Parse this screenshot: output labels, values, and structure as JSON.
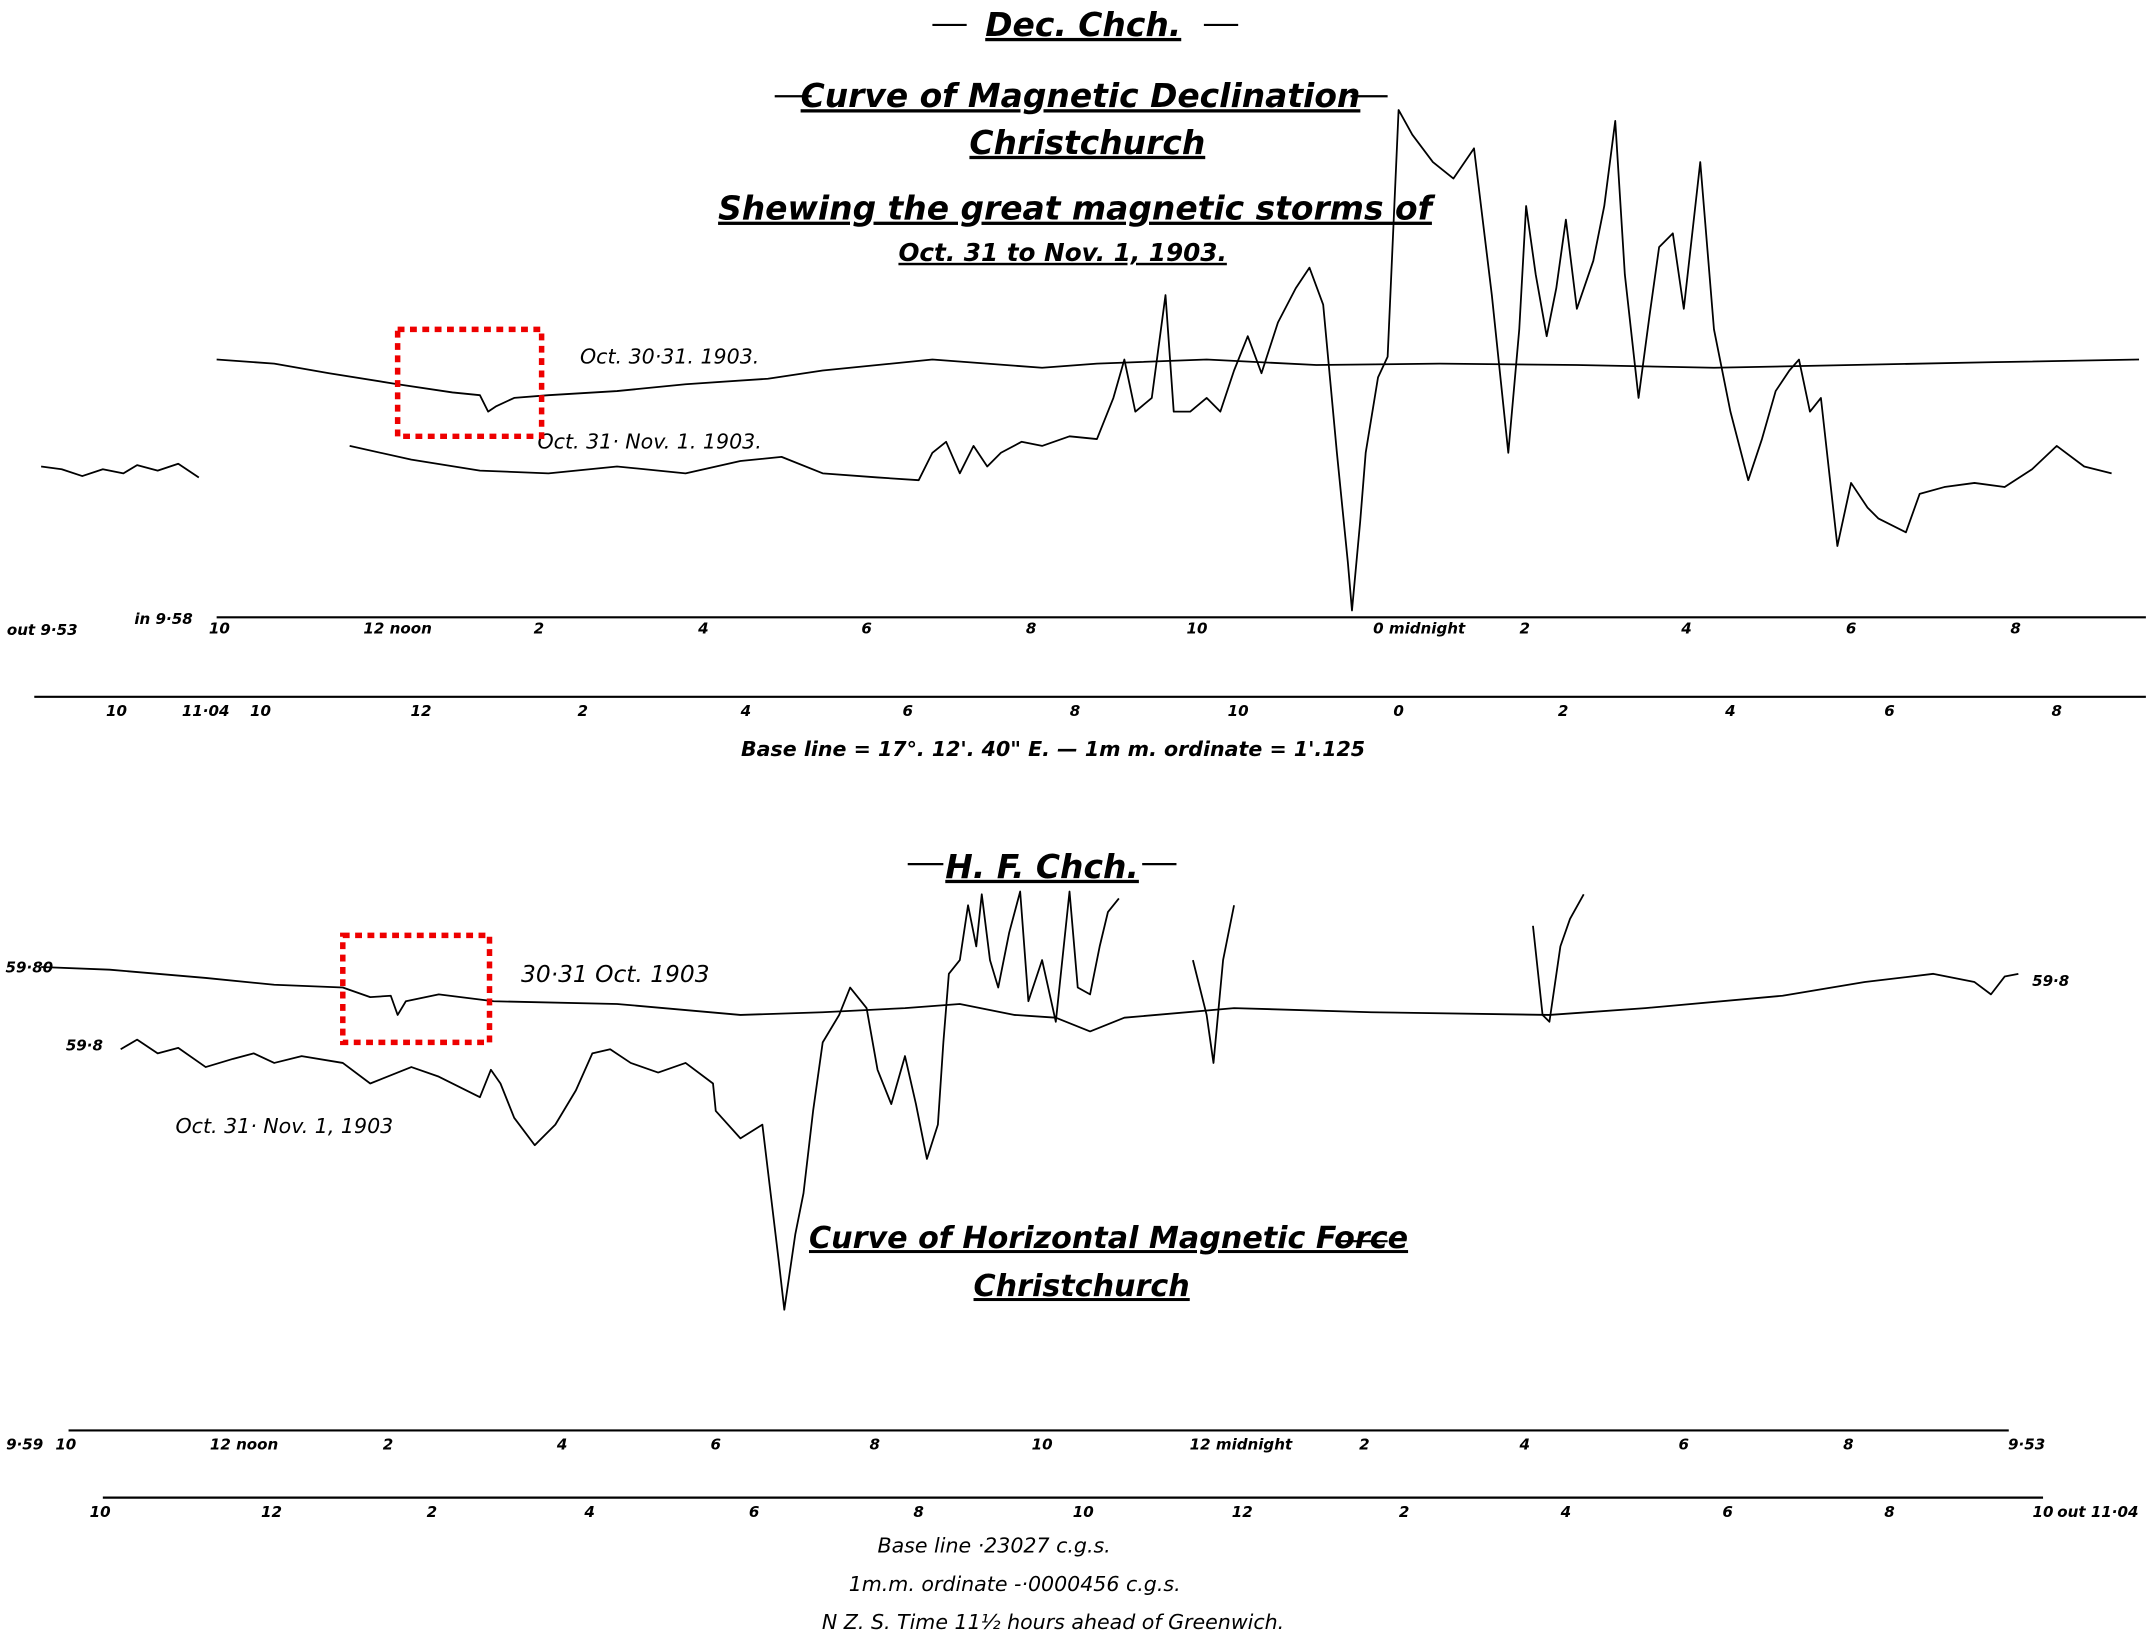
{
  "dec": {
    "title": "Dec. Chch.",
    "subtitle": "Curve of Magnetic Declination",
    "place": "Christchurch",
    "note": "Shewing the great magnetic storms of",
    "dates": "Oct. 31 to Nov. 1, 1903.",
    "curve_labels": [
      "Oct. 30·31. 1903.",
      "Oct. 31· Nov. 1. 1903."
    ],
    "scale_out": "out 9·53",
    "scale_in": "in 9·58",
    "time_row_1": [
      "10",
      "12 noon",
      "2",
      "4",
      "6",
      "8",
      "10",
      "0 midnight",
      "2",
      "4",
      "6",
      "8"
    ],
    "time_row_2": [
      "10",
      "11·04",
      "10",
      "12",
      "2",
      "4",
      "6",
      "8",
      "10",
      "0",
      "2",
      "4",
      "6",
      "8"
    ],
    "baseline": "Base line = 17°. 12'. 40\" E. — 1m m. ordinate = 1'.125"
  },
  "hf": {
    "title": "H. F. Chch.",
    "scale_left_1": "59·80",
    "scale_left_2": "59·8",
    "scale_right": "59·8",
    "curve_labels": [
      "30·31 Oct. 1903",
      "Oct. 31· Nov. 1, 1903"
    ],
    "subtitle": "Curve of Horizontal Magnetic Force",
    "place": "Christchurch",
    "time_row_1": [
      "9·59",
      "10",
      "12 noon",
      "2",
      "4",
      "6",
      "8",
      "10",
      "12 midnight",
      "2",
      "4",
      "6",
      "8",
      "9·53"
    ],
    "time_row_2": [
      "10",
      "12",
      "2",
      "4",
      "6",
      "8",
      "10",
      "12",
      "2",
      "4",
      "6",
      "8",
      "10",
      "out 11·04"
    ],
    "baseline": "Base line ·23027 c.g.s.",
    "ordinate": "1m.m. ordinate -·0000456 c.g.s.",
    "time_note": "N Z. S. Time 11½ hours ahead of Greenwich."
  }
}
